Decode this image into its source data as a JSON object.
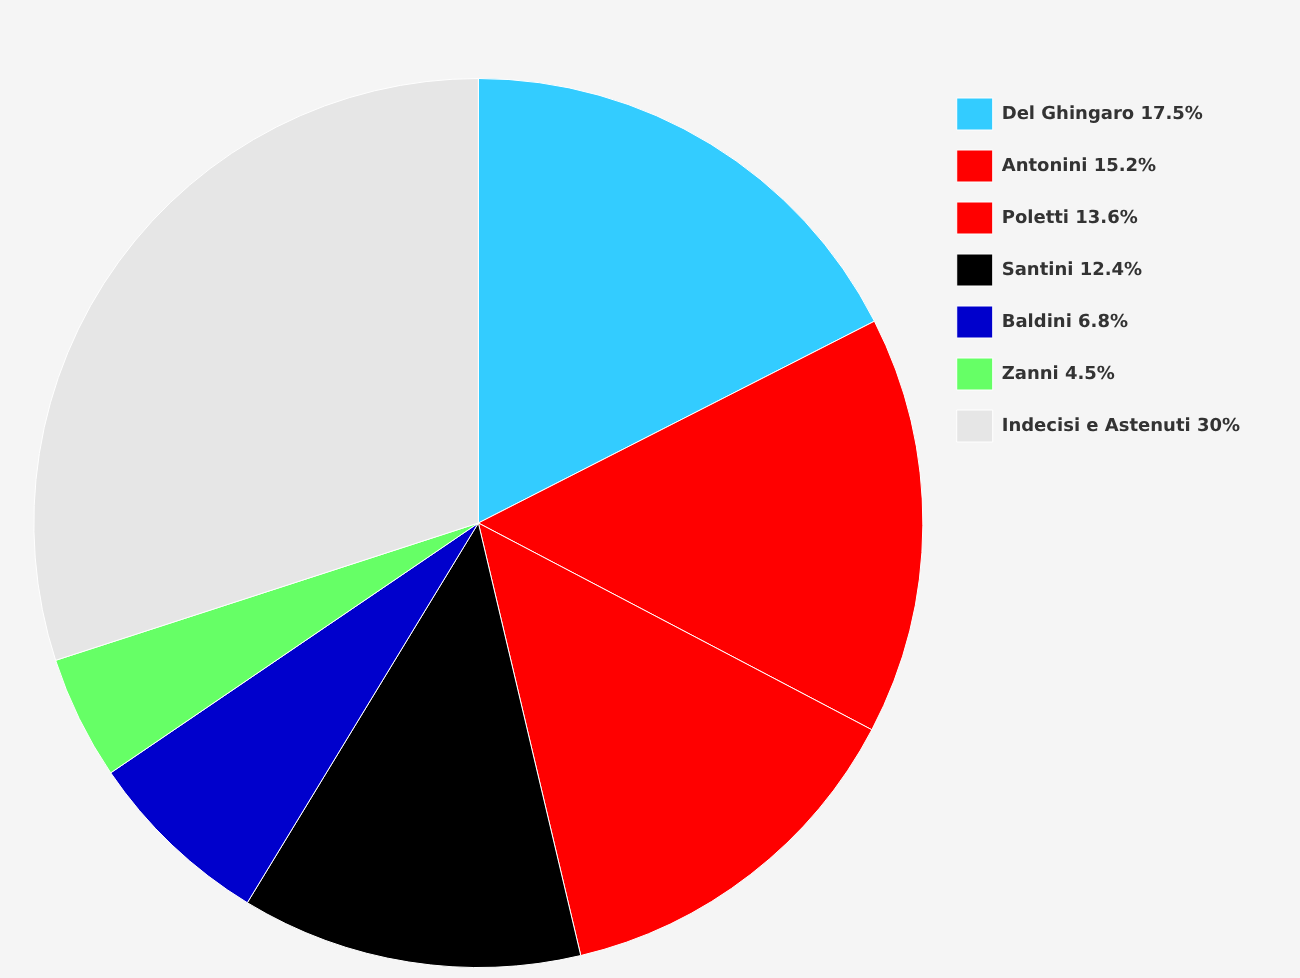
{
  "chart_data": {
    "type": "pie",
    "categories": [
      "Del Ghingaro 17.5%",
      "Antonini 15.2%",
      "Poletti 13.6%",
      "Santini 12.4%",
      "Baldini 6.8%",
      "Zanni 4.5%",
      "Indecisi e Astenuti 30%"
    ],
    "values": [
      17.5,
      15.2,
      13.6,
      12.4,
      6.8,
      4.5,
      30
    ],
    "colors": [
      "#33ccff",
      "#ff0000",
      "#ff0000",
      "#000000",
      "#0000cc",
      "#66ff66",
      "#e6e6e6"
    ],
    "legend": "top right"
  }
}
